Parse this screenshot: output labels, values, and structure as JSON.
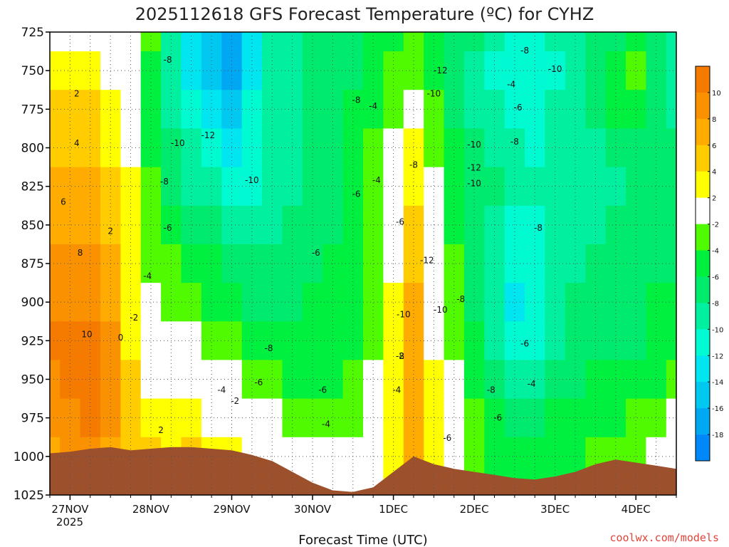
{
  "chart_data": {
    "type": "heatmap",
    "title": "2025112618 GFS Forecast Temperature (ºC) for CYHZ",
    "xlabel": "Forecast Time (UTC)",
    "ylabel": "",
    "credit": "coolwx.com/models",
    "credit_color": "#e0443c",
    "x_ticks": [
      "27NOV",
      "28NOV",
      "29NOV",
      "30NOV",
      "1DEC",
      "2DEC",
      "3DEC",
      "4DEC"
    ],
    "x_year_label": "2025",
    "y_ticks": [
      725,
      750,
      775,
      800,
      825,
      850,
      875,
      900,
      925,
      950,
      975,
      1000,
      1025
    ],
    "ylim": [
      725,
      1025
    ],
    "x_hours": [
      0,
      6,
      12,
      18,
      24,
      30,
      36,
      42,
      48,
      54,
      60,
      66,
      72,
      78,
      84,
      90,
      96,
      102,
      108,
      114,
      120,
      126,
      132,
      138,
      144,
      150,
      156,
      162,
      168,
      174,
      180,
      186
    ],
    "pressure_levels": [
      725,
      750,
      775,
      800,
      825,
      850,
      875,
      900,
      925,
      950,
      975,
      1000,
      1025
    ],
    "temperature_c": [
      [
        -1,
        0,
        1,
        0,
        0,
        -4,
        -10,
        -13,
        -16,
        -18,
        -14,
        -10,
        -9,
        -8,
        -8,
        -7,
        -6,
        -5,
        -3,
        -5,
        -7,
        -8,
        -10,
        -12,
        -12,
        -10,
        -9,
        -8,
        -7,
        -6,
        -8,
        -10
      ],
      [
        2,
        3,
        3,
        1,
        0,
        -5,
        -10,
        -14,
        -15,
        -17,
        -13,
        -10,
        -9,
        -8,
        -8,
        -7,
        -5,
        -4,
        -3,
        -5,
        -7,
        -9,
        -11,
        -12,
        -12,
        -11,
        -10,
        -8,
        -5,
        -4,
        -7,
        -10
      ],
      [
        4,
        4,
        4,
        2,
        1,
        -5,
        -9,
        -12,
        -14,
        -15,
        -12,
        -10,
        -9,
        -8,
        -7,
        -6,
        -5,
        -3,
        -2,
        -4,
        -7,
        -9,
        -10,
        -11,
        -11,
        -10,
        -9,
        -8,
        -6,
        -5,
        -7,
        -9
      ],
      [
        5,
        5,
        5,
        3,
        1,
        -5,
        -8,
        -10,
        -12,
        -13,
        -12,
        -10,
        -9,
        -8,
        -7,
        -6,
        -4,
        -1,
        2,
        -3,
        -6,
        -8,
        -9,
        -10,
        -11,
        -10,
        -10,
        -9,
        -8,
        -7,
        -7,
        -8
      ],
      [
        6,
        6,
        6,
        4,
        2,
        -4,
        -7,
        -9,
        -10,
        -11,
        -11,
        -10,
        -9,
        -8,
        -7,
        -6,
        -4,
        0,
        3,
        -2,
        -5,
        -7,
        -8,
        -9,
        -10,
        -10,
        -10,
        -10,
        -9,
        -8,
        -7,
        -8
      ],
      [
        7,
        7,
        7,
        5,
        2,
        -4,
        -6,
        -7,
        -8,
        -9,
        -9,
        -9,
        -8,
        -7,
        -7,
        -6,
        -4,
        1,
        4,
        -2,
        -5,
        -7,
        -9,
        -11,
        -11,
        -10,
        -9,
        -9,
        -8,
        -8,
        -7,
        -7
      ],
      [
        8,
        8,
        8,
        6,
        2,
        -3,
        -4,
        -5,
        -6,
        -7,
        -8,
        -8,
        -7,
        -7,
        -6,
        -6,
        -4,
        1,
        5,
        -1,
        -4,
        -7,
        -10,
        -12,
        -12,
        -10,
        -9,
        -8,
        -8,
        -7,
        -7,
        -7
      ],
      [
        9,
        9,
        9,
        7,
        2,
        -2,
        -3,
        -4,
        -5,
        -6,
        -7,
        -7,
        -7,
        -6,
        -6,
        -5,
        -3,
        2,
        6,
        0,
        -4,
        -7,
        -10,
        -13,
        -12,
        -10,
        -8,
        -7,
        -7,
        -7,
        -6,
        -6
      ],
      [
        10,
        10,
        11,
        8,
        3,
        0,
        -1,
        -2,
        -3,
        -4,
        -5,
        -6,
        -6,
        -6,
        -5,
        -5,
        -3,
        2,
        6,
        1,
        -3,
        -6,
        -9,
        -11,
        -11,
        -9,
        -8,
        -7,
        -7,
        -7,
        -6,
        -5
      ],
      [
        9,
        10,
        11,
        8,
        4,
        1,
        1,
        0,
        -1,
        -2,
        -3,
        -4,
        -5,
        -5,
        -5,
        -4,
        -2,
        3,
        7,
        2,
        -2,
        -5,
        -7,
        -9,
        -9,
        -8,
        -7,
        -6,
        -6,
        -5,
        -5,
        -4
      ],
      [
        8,
        9,
        10,
        8,
        5,
        3,
        2,
        2,
        1,
        0,
        -1,
        -2,
        -3,
        -3,
        -4,
        -3,
        -1,
        3,
        7,
        3,
        -1,
        -4,
        -6,
        -7,
        -7,
        -6,
        -6,
        -5,
        -5,
        -4,
        -3,
        -2
      ],
      [
        7,
        8,
        9,
        7,
        5,
        4,
        3,
        4,
        3,
        2,
        1,
        0,
        -1,
        -2,
        -2,
        -2,
        0,
        3,
        6,
        3,
        0,
        -3,
        -5,
        -6,
        -6,
        -5,
        -5,
        -4,
        -4,
        -3,
        -2,
        -1
      ],
      [
        6,
        7,
        8,
        7,
        5,
        4,
        3,
        4,
        3,
        2,
        1,
        0,
        -1,
        -2,
        -2,
        -2,
        0,
        3,
        6,
        3,
        0,
        -3,
        -5,
        -6,
        -6,
        -5,
        -5,
        -4,
        -4,
        -3,
        -2,
        -1
      ]
    ],
    "surface_pressure": [
      998,
      997,
      995,
      994,
      996,
      995,
      994,
      994,
      995,
      996,
      999,
      1003,
      1010,
      1017,
      1022,
      1023,
      1020,
      1010,
      1000,
      1005,
      1008,
      1010,
      1012,
      1014,
      1015,
      1013,
      1010,
      1005,
      1002,
      1004,
      1006,
      1008
    ],
    "contour_labels": [
      {
        "h": 8,
        "p": 765,
        "v": "2"
      },
      {
        "h": 8,
        "p": 797,
        "v": "4"
      },
      {
        "h": 4,
        "p": 835,
        "v": "6"
      },
      {
        "h": 9,
        "p": 868,
        "v": "8"
      },
      {
        "h": 11,
        "p": 921,
        "v": "10"
      },
      {
        "h": 18,
        "p": 854,
        "v": "2"
      },
      {
        "h": 21,
        "p": 923,
        "v": "0"
      },
      {
        "h": 25,
        "p": 910,
        "v": "-2"
      },
      {
        "h": 29,
        "p": 883,
        "v": "-4"
      },
      {
        "h": 35,
        "p": 852,
        "v": "-6"
      },
      {
        "h": 34,
        "p": 822,
        "v": "-8"
      },
      {
        "h": 38,
        "p": 797,
        "v": "-10"
      },
      {
        "h": 47,
        "p": 792,
        "v": "-12"
      },
      {
        "h": 35,
        "p": 743,
        "v": "-8"
      },
      {
        "h": 33,
        "p": 983,
        "v": "2"
      },
      {
        "h": 51,
        "p": 957,
        "v": "-4"
      },
      {
        "h": 55,
        "p": 964,
        "v": "-2"
      },
      {
        "h": 62,
        "p": 952,
        "v": "-6"
      },
      {
        "h": 65,
        "p": 930,
        "v": "-8"
      },
      {
        "h": 60,
        "p": 821,
        "v": "-10"
      },
      {
        "h": 81,
        "p": 957,
        "v": "-6"
      },
      {
        "h": 82,
        "p": 979,
        "v": "-4"
      },
      {
        "h": 79,
        "p": 868,
        "v": "-6"
      },
      {
        "h": 91,
        "p": 830,
        "v": "-6"
      },
      {
        "h": 91,
        "p": 769,
        "v": "-8"
      },
      {
        "h": 96,
        "p": 773,
        "v": "-4"
      },
      {
        "h": 97,
        "p": 821,
        "v": "-4"
      },
      {
        "h": 104,
        "p": 935,
        "v": "-2"
      },
      {
        "h": 103,
        "p": 957,
        "v": "-4"
      },
      {
        "h": 104,
        "p": 935,
        "v": "-8"
      },
      {
        "h": 104,
        "p": 848,
        "v": "-6"
      },
      {
        "h": 105,
        "p": 908,
        "v": "-10"
      },
      {
        "h": 108,
        "p": 811,
        "v": "-8"
      },
      {
        "h": 112,
        "p": 873,
        "v": "-12"
      },
      {
        "h": 114,
        "p": 765,
        "v": "-10"
      },
      {
        "h": 116,
        "p": 750,
        "v": "-12"
      },
      {
        "h": 116,
        "p": 905,
        "v": "-10"
      },
      {
        "h": 122,
        "p": 898,
        "v": "-8"
      },
      {
        "h": 118,
        "p": 988,
        "v": "-6"
      },
      {
        "h": 126,
        "p": 798,
        "v": "-10"
      },
      {
        "h": 126,
        "p": 823,
        "v": "-10"
      },
      {
        "h": 126,
        "p": 813,
        "v": "-12"
      },
      {
        "h": 131,
        "p": 957,
        "v": "-8"
      },
      {
        "h": 133,
        "p": 975,
        "v": "-6"
      },
      {
        "h": 137,
        "p": 759,
        "v": "-4"
      },
      {
        "h": 139,
        "p": 774,
        "v": "-6"
      },
      {
        "h": 138,
        "p": 796,
        "v": "-8"
      },
      {
        "h": 141,
        "p": 737,
        "v": "-8"
      },
      {
        "h": 145,
        "p": 852,
        "v": "-8"
      },
      {
        "h": 141,
        "p": 927,
        "v": "-6"
      },
      {
        "h": 143,
        "p": 953,
        "v": "-4"
      },
      {
        "h": 150,
        "p": 749,
        "v": "-10"
      }
    ],
    "colorbar": {
      "ticks": [
        10,
        8,
        6,
        4,
        2,
        -2,
        -4,
        -6,
        -8,
        -10,
        -12,
        -14,
        -16,
        -18
      ],
      "bands": [
        {
          "lo": 10,
          "hi": 12,
          "color": "#f57a00"
        },
        {
          "lo": 8,
          "hi": 10,
          "color": "#fa9100"
        },
        {
          "lo": 6,
          "hi": 8,
          "color": "#ffab00"
        },
        {
          "lo": 4,
          "hi": 6,
          "color": "#ffcc00"
        },
        {
          "lo": 2,
          "hi": 4,
          "color": "#ffff00"
        },
        {
          "lo": -2,
          "hi": 2,
          "color": "#ffffff"
        },
        {
          "lo": -4,
          "hi": -2,
          "color": "#50fa00"
        },
        {
          "lo": -6,
          "hi": -4,
          "color": "#00f040"
        },
        {
          "lo": -8,
          "hi": -6,
          "color": "#00ea6e"
        },
        {
          "lo": -10,
          "hi": -8,
          "color": "#00f0a0"
        },
        {
          "lo": -12,
          "hi": -10,
          "color": "#00fad2"
        },
        {
          "lo": -14,
          "hi": -12,
          "color": "#00e6f0"
        },
        {
          "lo": -16,
          "hi": -14,
          "color": "#00c8f0"
        },
        {
          "lo": -18,
          "hi": -16,
          "color": "#00a8f4"
        },
        {
          "lo": -20,
          "hi": -18,
          "color": "#0088f8"
        }
      ]
    },
    "terrain_color": "#9c502c",
    "grid": true
  }
}
